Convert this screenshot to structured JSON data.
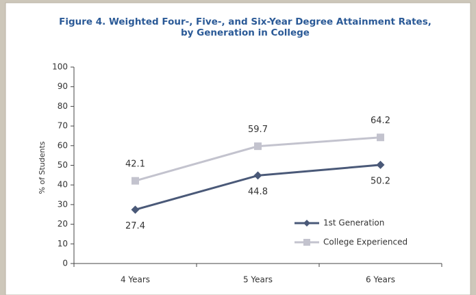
{
  "chart_data": {
    "type": "line",
    "title": [
      "Figure 4. Weighted Four-, Five-, and Six-Year Degree Attainment Rates,",
      "by Generation in College"
    ],
    "y_label": "% of Students",
    "categories": [
      "4 Years",
      "5 Years",
      "6 Years"
    ],
    "series": [
      {
        "name": "1st Generation",
        "color": "#4a5978",
        "marker": "diamond",
        "values": [
          27.4,
          44.8,
          50.2
        ],
        "label_position": "below"
      },
      {
        "name": "College Experienced",
        "color": "#c3c3ce",
        "marker": "square",
        "values": [
          42.1,
          59.7,
          64.2
        ],
        "label_position": "above"
      }
    ],
    "ylim": [
      0,
      100
    ],
    "yticks": [
      0,
      10,
      20,
      30,
      40,
      50,
      60,
      70,
      80,
      90,
      100
    ],
    "grid": false,
    "legend": "lower right"
  }
}
